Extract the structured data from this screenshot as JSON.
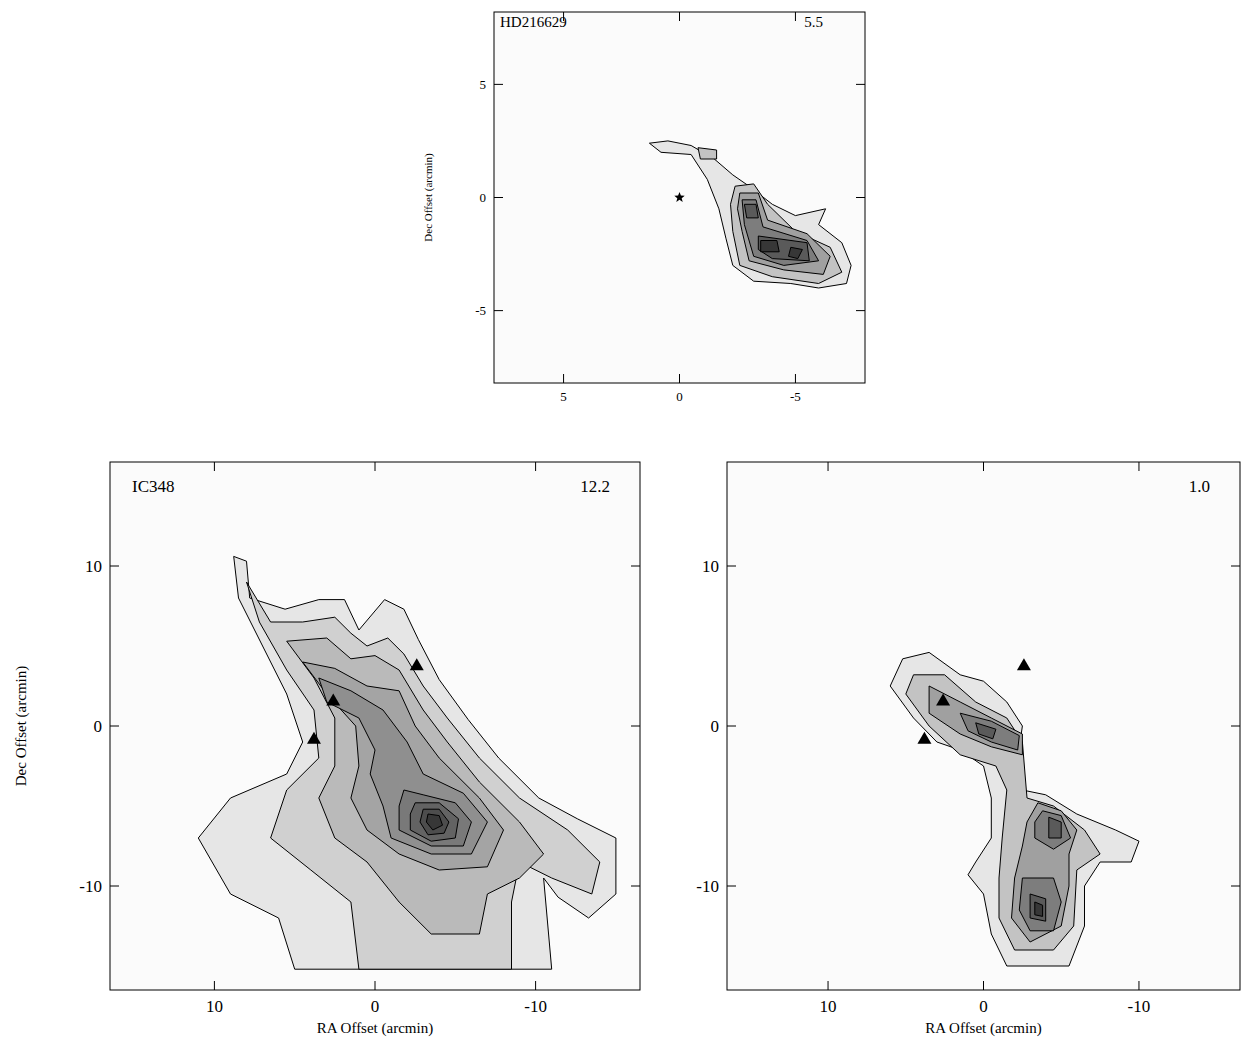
{
  "chart_data": [
    {
      "type": "contour",
      "title": "HD216629",
      "annotation": "5.5",
      "ylabel": "Dec Offset (arcmin)",
      "xlim": [
        8,
        -8
      ],
      "ylim": [
        -8.2,
        8.2
      ],
      "xticks": [
        5,
        0,
        -5
      ],
      "yticks": [
        -5,
        0,
        5
      ],
      "contours": [
        {
          "level": 1,
          "x": [
            1.3,
            0.5,
            -0.5,
            -1.5,
            -2.3,
            -3.0,
            -4.0,
            -5.0,
            -6.3,
            -6.0,
            -7.0,
            -7.4,
            -7.2,
            -6.0,
            -4.8,
            -3.2,
            -2.3,
            -2.0,
            -1.7,
            -1.2,
            -0.5,
            0.8
          ],
          "y": [
            2.4,
            2.5,
            2.3,
            1.7,
            1.0,
            0.5,
            -0.3,
            -0.8,
            -0.5,
            -1.2,
            -2.0,
            -3.0,
            -3.8,
            -4.0,
            -3.8,
            -3.7,
            -3.0,
            -1.8,
            -0.5,
            0.8,
            1.9,
            2.0
          ]
        },
        {
          "level": 2,
          "x": [
            -2.4,
            -3.2,
            -3.8,
            -5.0,
            -6.5,
            -7.0,
            -6.0,
            -4.0,
            -2.6,
            -2.3,
            -2.2
          ],
          "y": [
            0.5,
            0.6,
            -0.3,
            -1.5,
            -2.2,
            -3.3,
            -3.8,
            -3.5,
            -3.0,
            -1.5,
            -0.3
          ]
        },
        {
          "level": 2,
          "x": [
            -0.8,
            -1.6,
            -1.6,
            -0.9
          ],
          "y": [
            2.2,
            2.1,
            1.7,
            1.7
          ]
        },
        {
          "level": 3,
          "x": [
            -2.6,
            -3.4,
            -3.8,
            -5.5,
            -6.5,
            -6.2,
            -4.5,
            -3.0,
            -2.7,
            -2.5
          ],
          "y": [
            0.2,
            0.2,
            -1.0,
            -1.6,
            -2.6,
            -3.4,
            -3.2,
            -2.8,
            -1.5,
            -0.5
          ]
        },
        {
          "level": 4,
          "x": [
            -2.7,
            -3.3,
            -3.6,
            -5.5,
            -6.0,
            -4.5,
            -3.2,
            -2.8
          ],
          "y": [
            -0.1,
            -0.1,
            -1.3,
            -1.9,
            -2.8,
            -3.0,
            -2.6,
            -1.2
          ]
        },
        {
          "level": 5,
          "x": [
            -2.8,
            -3.3,
            -3.4,
            -2.9
          ],
          "y": [
            -0.3,
            -0.3,
            -0.9,
            -0.9
          ]
        },
        {
          "level": 5,
          "x": [
            -3.4,
            -5.5,
            -5.6,
            -4.0,
            -3.4
          ],
          "y": [
            -1.7,
            -2.0,
            -2.8,
            -2.7,
            -2.3
          ]
        },
        {
          "level": 6,
          "x": [
            -3.5,
            -4.2,
            -4.3,
            -3.5
          ],
          "y": [
            -1.9,
            -1.9,
            -2.4,
            -2.4
          ]
        },
        {
          "level": 6,
          "x": [
            -4.8,
            -5.3,
            -5.1,
            -4.7
          ],
          "y": [
            -2.2,
            -2.3,
            -2.7,
            -2.6
          ]
        }
      ],
      "points": [
        {
          "marker": "star",
          "x": [
            0
          ],
          "y": [
            0
          ]
        }
      ]
    },
    {
      "type": "contour",
      "title": "IC348",
      "annotation": "12.2",
      "xlabel": "RA Offset (arcmin)",
      "ylabel": "Dec Offset (arcmin)",
      "xlim": [
        16.5,
        -16.5
      ],
      "ylim": [
        -16.5,
        16.5
      ],
      "xticks": [
        10,
        0,
        -10
      ],
      "yticks": [
        -10,
        0,
        10
      ],
      "contours": [
        {
          "level": 1,
          "x": [
            8.8,
            8.0,
            7.8,
            5.6,
            3.5,
            1.9,
            1.0,
            -0.6,
            -1.8,
            -2.7,
            -4.0,
            -5.8,
            -7.7,
            -10.2,
            -12.6,
            -15.0,
            -15.0,
            -13.3,
            -11.4,
            -10.5,
            -11,
            5,
            6,
            9,
            11,
            9,
            5.5,
            4.5,
            5.5,
            7,
            8.5
          ],
          "y": [
            10.6,
            10.3,
            8.0,
            7.3,
            7.9,
            7.9,
            6.0,
            7.9,
            7.3,
            5.4,
            2.9,
            0.4,
            -2.0,
            -4.5,
            -5.8,
            -7.0,
            -10.5,
            -12.0,
            -10.7,
            -9.5,
            -15.2,
            -15.2,
            -12,
            -10.5,
            -7,
            -4.5,
            -3,
            -1,
            2,
            5,
            8
          ]
        },
        {
          "level": 2,
          "x": [
            8.0,
            6.5,
            4.5,
            2.5,
            1.5,
            0.5,
            -0.8,
            -1.8,
            -3,
            -4.5,
            -6.5,
            -9,
            -12,
            -14,
            -13.5,
            -11,
            -9,
            -8.5,
            -8.5,
            1,
            1.5,
            4,
            6.5,
            5.5,
            3.5,
            3.8,
            5.5,
            7.2
          ],
          "y": [
            9.0,
            6.5,
            6.5,
            6.8,
            5.8,
            5.0,
            5.5,
            4.5,
            2.5,
            0.5,
            -2,
            -4.5,
            -6.5,
            -8.5,
            -10.5,
            -9.5,
            -8.5,
            -11,
            -15.2,
            -15.2,
            -11,
            -9,
            -7,
            -4,
            -2,
            1,
            3.5,
            6.5
          ]
        },
        {
          "level": 3,
          "x": [
            5.5,
            3,
            1.5,
            0,
            -1.5,
            -3,
            -4.5,
            -6.5,
            -9,
            -10.5,
            -9,
            -7,
            -6.5,
            -3.5,
            -1.5,
            0.5,
            2.5,
            3.5,
            2.5,
            2.5,
            3.8
          ],
          "y": [
            5.3,
            5.5,
            4.2,
            4.4,
            3.5,
            1,
            -1,
            -3.5,
            -6,
            -8,
            -9.5,
            -10.5,
            -13,
            -13,
            -11,
            -8.5,
            -7,
            -4.5,
            -2.5,
            0.5,
            3
          ]
        },
        {
          "level": 4,
          "x": [
            4.5,
            2.5,
            0.5,
            -1.5,
            -2.5,
            -4,
            -6.5,
            -8,
            -7,
            -4,
            -1.5,
            0.5,
            1.5,
            1,
            1.2,
            3
          ],
          "y": [
            4,
            3.6,
            2.5,
            2.2,
            0,
            -2,
            -4.5,
            -6.5,
            -8.8,
            -9,
            -8,
            -6.5,
            -4.5,
            -2.5,
            0,
            2
          ]
        },
        {
          "level": 5,
          "x": [
            3.5,
            1.5,
            -0.5,
            -2,
            -3,
            -5.5,
            -7,
            -6,
            -3.5,
            -1,
            -0.5,
            0.3,
            0,
            1,
            3
          ],
          "y": [
            3,
            2.2,
            1,
            -1,
            -3,
            -4.2,
            -6,
            -8,
            -8,
            -7,
            -5,
            -3,
            -1.5,
            0.5,
            1.5
          ]
        },
        {
          "level": 6,
          "x": [
            -1.8,
            -3,
            -5,
            -6,
            -5.5,
            -3.5,
            -1.5,
            -1.5
          ],
          "y": [
            -4,
            -4.3,
            -4.8,
            -6,
            -7.5,
            -7.5,
            -6.5,
            -5
          ]
        },
        {
          "level": 7,
          "x": [
            -2.5,
            -4,
            -5.2,
            -5,
            -3.5,
            -2.2,
            -2.2
          ],
          "y": [
            -4.8,
            -4.8,
            -5.8,
            -7,
            -7.2,
            -6.5,
            -5.5
          ]
        },
        {
          "level": 8,
          "x": [
            -3,
            -4,
            -4.6,
            -4.3,
            -3.3,
            -2.8
          ],
          "y": [
            -5.2,
            -5.2,
            -6,
            -6.7,
            -6.8,
            -6
          ]
        },
        {
          "level": 9,
          "x": [
            -3.3,
            -4,
            -4.2,
            -3.6,
            -3.2
          ],
          "y": [
            -5.5,
            -5.6,
            -6.2,
            -6.5,
            -6
          ]
        }
      ],
      "points": [
        {
          "marker": "triangle",
          "x": [
            3.8,
            2.6,
            -2.6
          ],
          "y": [
            -0.8,
            1.6,
            3.8
          ]
        }
      ]
    },
    {
      "type": "contour",
      "annotation": "1.0",
      "xlabel": "RA Offset (arcmin)",
      "xlim": [
        16.5,
        -16.5
      ],
      "ylim": [
        -16.5,
        16.5
      ],
      "xticks": [
        10,
        0,
        -10
      ],
      "yticks": [
        -10,
        0,
        10
      ],
      "contours": [
        {
          "level": 1,
          "x": [
            5.2,
            3.5,
            1.5,
            0,
            -1.5,
            -2.5,
            -2.2,
            -2.5,
            -4,
            -6,
            -8.5,
            -10,
            -9.5,
            -7.5,
            -6.5,
            -6.5,
            -5.5,
            -1.5,
            -0.5,
            0,
            1,
            0.5,
            -0.5,
            -0.5,
            0,
            1.5,
            3,
            4.5,
            6
          ],
          "y": [
            4.2,
            4.6,
            3.2,
            2.8,
            1.5,
            0,
            -2,
            -4,
            -4.3,
            -5.5,
            -6.5,
            -7.2,
            -8.5,
            -8.5,
            -10,
            -12.5,
            -15,
            -15,
            -13,
            -10.5,
            -9.3,
            -8.5,
            -7,
            -4.5,
            -2.5,
            -1.5,
            -1,
            0.5,
            2.5
          ]
        },
        {
          "level": 2,
          "x": [
            4.5,
            2.5,
            0.5,
            -1.5,
            -2.5,
            -2.8,
            -4.5,
            -6.5,
            -7.5,
            -6,
            -5.8,
            -4.5,
            -2,
            -1,
            -1,
            -1.2,
            -1.5,
            -0.8,
            1.5,
            3.5,
            5
          ],
          "y": [
            3.2,
            3.2,
            1.5,
            0.5,
            -1,
            -4.5,
            -5,
            -6.5,
            -8,
            -9,
            -12.5,
            -14,
            -14,
            -12,
            -9.5,
            -7,
            -4,
            -2.5,
            -1.8,
            0,
            2
          ]
        },
        {
          "level": 3,
          "x": [
            3.5,
            1.5,
            -0.5,
            -2.5,
            -2.5,
            -0.5,
            1.5,
            3.5
          ],
          "y": [
            2.5,
            1.5,
            0.5,
            -0.5,
            -1.8,
            -1.3,
            -0.5,
            0.8
          ]
        },
        {
          "level": 3,
          "x": [
            -3.5,
            -5,
            -6,
            -5.5,
            -5.5,
            -5,
            -3,
            -1.8,
            -2,
            -2.5,
            -2.8
          ],
          "y": [
            -4.8,
            -5.3,
            -6.5,
            -8,
            -10,
            -12.5,
            -13.5,
            -12,
            -9.5,
            -7.5,
            -6
          ]
        },
        {
          "level": 4,
          "x": [
            1.5,
            -0.5,
            -2.3,
            -2.2,
            -0.5,
            1
          ],
          "y": [
            0.8,
            0.3,
            -0.6,
            -1.5,
            -1,
            -0.3
          ]
        },
        {
          "level": 4,
          "x": [
            -3.8,
            -5,
            -5.6,
            -4.5,
            -3.3,
            -3.3
          ],
          "y": [
            -5.3,
            -5.6,
            -7,
            -7.7,
            -7,
            -6
          ]
        },
        {
          "level": 4,
          "x": [
            -2.5,
            -4.5,
            -5,
            -4.5,
            -3,
            -2.3
          ],
          "y": [
            -9.5,
            -9.5,
            -11,
            -12.8,
            -12.8,
            -11.5
          ]
        },
        {
          "level": 5,
          "x": [
            0.5,
            -0.8,
            -0.6,
            0.3
          ],
          "y": [
            0.2,
            -0.2,
            -0.8,
            -0.5
          ]
        },
        {
          "level": 5,
          "x": [
            -4.2,
            -5,
            -5,
            -4.2
          ],
          "y": [
            -5.7,
            -6,
            -7,
            -7
          ]
        },
        {
          "level": 5,
          "x": [
            -3,
            -4,
            -4,
            -3
          ],
          "y": [
            -10.5,
            -10.8,
            -12.2,
            -12
          ]
        },
        {
          "level": 6,
          "x": [
            -3.3,
            -3.8,
            -3.8,
            -3.3
          ],
          "y": [
            -11,
            -11.2,
            -11.9,
            -11.8
          ]
        }
      ],
      "points": [
        {
          "marker": "triangle",
          "x": [
            3.8,
            2.6,
            -2.6
          ],
          "y": [
            -0.8,
            1.6,
            3.8
          ]
        }
      ]
    }
  ]
}
